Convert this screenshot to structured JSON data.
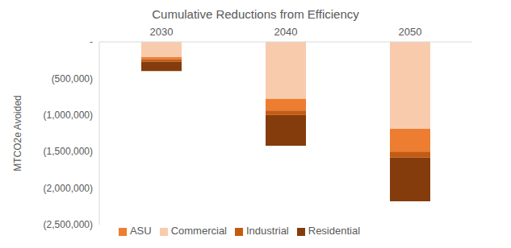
{
  "chart_data": {
    "type": "bar",
    "title": "Cumulative Reductions from Efficiency",
    "y_label": "MTCO2e Avoided",
    "categories": [
      "2030",
      "2040",
      "2050"
    ],
    "series": [
      {
        "name": "Commercial",
        "color": "#f8cbad",
        "values": [
          -210000,
          -780000,
          -1190000
        ]
      },
      {
        "name": "ASU",
        "color": "#ed7d31",
        "values": [
          -30000,
          -160000,
          -310000
        ]
      },
      {
        "name": "Industrial",
        "color": "#c55a11",
        "values": [
          -30000,
          -60000,
          -80000
        ]
      },
      {
        "name": "Residential",
        "color": "#843c0c",
        "values": [
          -130000,
          -420000,
          -600000
        ]
      }
    ],
    "ylim": [
      -2500000,
      0
    ],
    "yticks": [
      {
        "value": 0,
        "label": "-"
      },
      {
        "value": -500000,
        "label": "(500,000)"
      },
      {
        "value": -1000000,
        "label": "(1,000,000)"
      },
      {
        "value": -1500000,
        "label": "(1,500,000)"
      },
      {
        "value": -2000000,
        "label": "(2,000,000)"
      },
      {
        "value": -2500000,
        "label": "(2,500,000)"
      }
    ],
    "stacked": true,
    "grid": false,
    "legend": "bottom"
  }
}
